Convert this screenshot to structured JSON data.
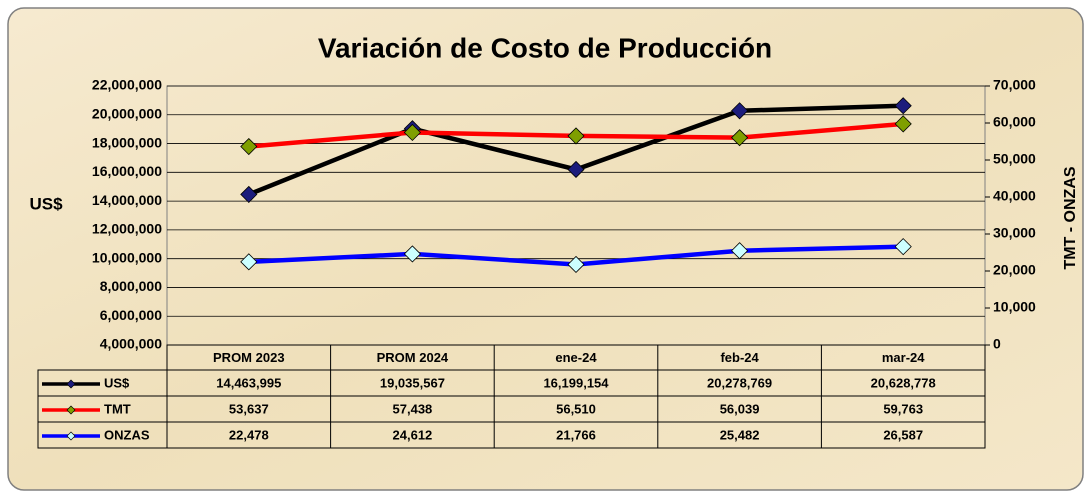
{
  "chart_data": {
    "type": "line",
    "title": "Variación de Costo de Producción",
    "ylabel": "US$",
    "y2label": "TMT - ONZAS",
    "categories": [
      "PROM 2023",
      "PROM 2024",
      "ene-24",
      "feb-24",
      "mar-24"
    ],
    "ylim": [
      4000000,
      22000000
    ],
    "yticks": [
      {
        "value": 4000000,
        "label": "4,000,000"
      },
      {
        "value": 6000000,
        "label": "6,000,000"
      },
      {
        "value": 8000000,
        "label": "8,000,000"
      },
      {
        "value": 10000000,
        "label": "10,000,000"
      },
      {
        "value": 12000000,
        "label": "12,000,000"
      },
      {
        "value": 14000000,
        "label": "14,000,000"
      },
      {
        "value": 16000000,
        "label": "16,000,000"
      },
      {
        "value": 18000000,
        "label": "18,000,000"
      },
      {
        "value": 20000000,
        "label": "20,000,000"
      },
      {
        "value": 22000000,
        "label": "22,000,000"
      }
    ],
    "y2lim": [
      0,
      70000
    ],
    "y2ticks": [
      0,
      {
        "value": 10000,
        "label": "10,000"
      },
      {
        "value": 20000,
        "label": "20,000"
      },
      {
        "value": 30000,
        "label": "30,000"
      },
      {
        "value": 40000,
        "label": "40,000"
      },
      {
        "value": 50000,
        "label": "50,000"
      },
      {
        "value": 60000,
        "label": "60,000"
      },
      {
        "value": 70000,
        "label": "70,000"
      }
    ],
    "grid": true,
    "series": [
      {
        "name": "US$",
        "color": "#000000",
        "marker_color": "#1c1c7c",
        "values": [
          14463995,
          19035567,
          16199154,
          20278769,
          20628778
        ],
        "value_labels": [
          "14,463,995",
          "19,035,567",
          "16,199,154",
          "20,278,769",
          "20,628,778"
        ]
      },
      {
        "name": "TMT",
        "color": "#ff0000",
        "marker_color": "#7f9f00",
        "axis": "y2",
        "values": [
          53637,
          57438,
          56510,
          56039,
          59763
        ],
        "value_labels": [
          "53,637",
          "57,438",
          "56,510",
          "56,039",
          "59,763"
        ]
      },
      {
        "name": "ONZAS",
        "color": "#0000ff",
        "marker_color": "#ccffff",
        "axis": "y2",
        "values": [
          22478,
          24612,
          21766,
          25482,
          26587
        ],
        "value_labels": [
          "22,478",
          "24,612",
          "21,766",
          "25,482",
          "26,587"
        ]
      }
    ]
  }
}
